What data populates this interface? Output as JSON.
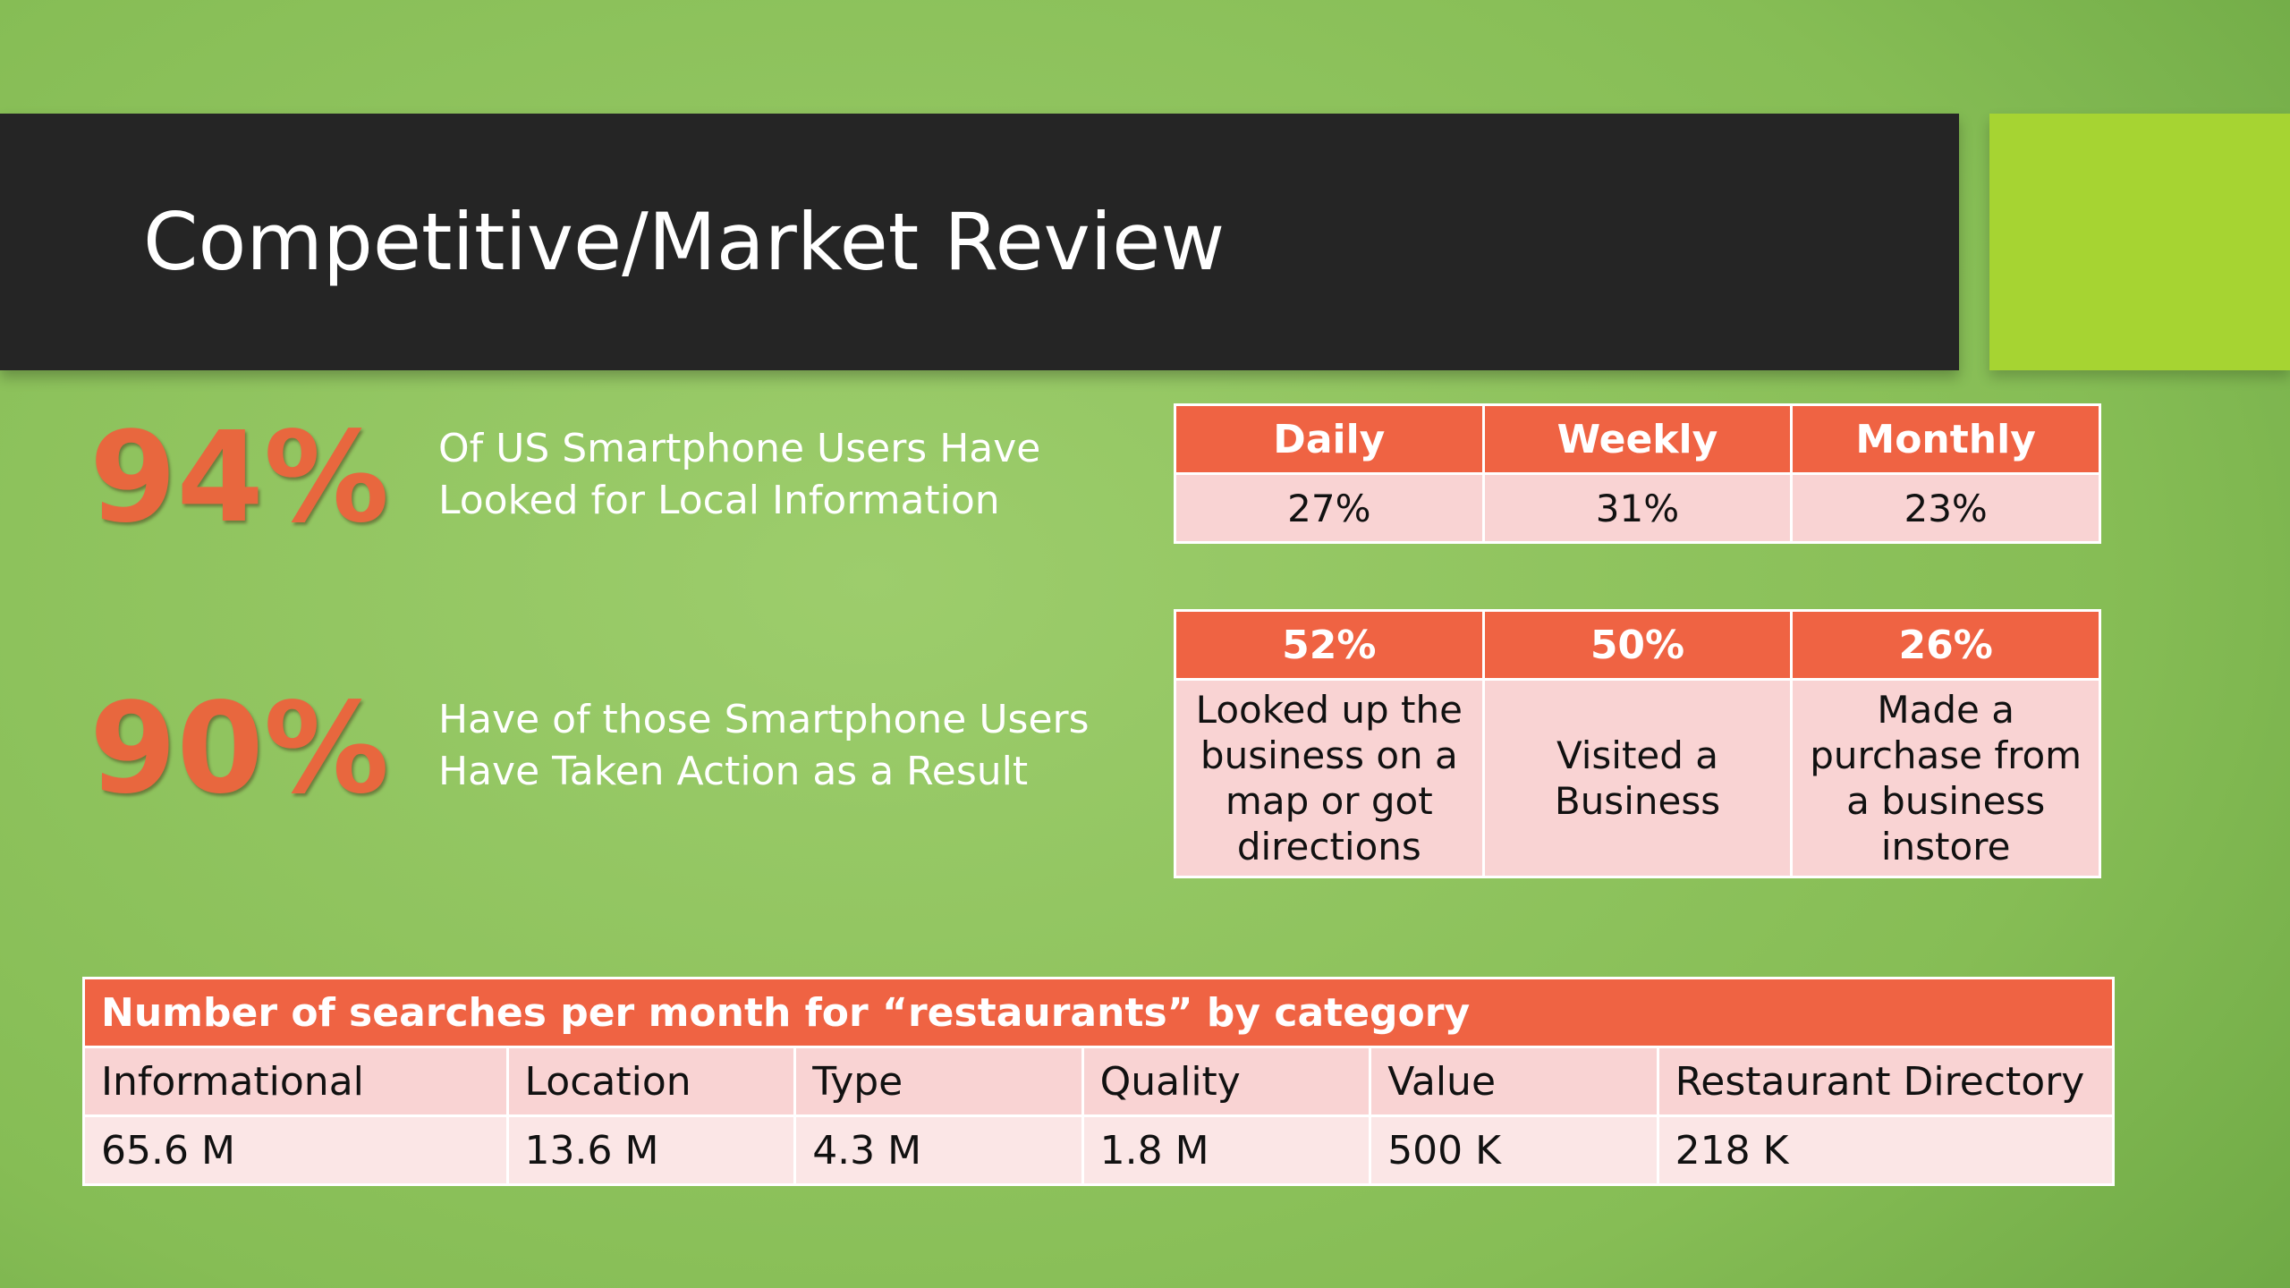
{
  "slide": {
    "title": "Competitive/Market Review",
    "colors": {
      "title_bar": "#252525",
      "accent": "#a6d432",
      "stat": "#e8673e",
      "table_header": "#ef6343",
      "table_cell": "#f9d3d3"
    }
  },
  "stats": [
    {
      "value": "94%",
      "description": "Of US Smartphone Users Have Looked for Local Information"
    },
    {
      "value": "90%",
      "description": "Have of those Smartphone Users Have Taken Action as a Result"
    }
  ],
  "frequency_table": {
    "headers": [
      "Daily",
      "Weekly",
      "Monthly"
    ],
    "values": [
      "27%",
      "31%",
      "23%"
    ]
  },
  "action_table": {
    "headers": [
      "52%",
      "50%",
      "26%"
    ],
    "descriptions": [
      "Looked up the business on a map or got directions",
      "Visited a Business",
      "Made a purchase from a business instore"
    ]
  },
  "search_table": {
    "title": "Number of searches per month for “restaurants” by category",
    "categories": [
      "Informational",
      "Location",
      "Type",
      "Quality",
      "Value",
      "Restaurant Directory"
    ],
    "values": [
      "65.6 M",
      "13.6 M",
      "4.3 M",
      "1.8 M",
      "500 K",
      "218 K"
    ]
  }
}
